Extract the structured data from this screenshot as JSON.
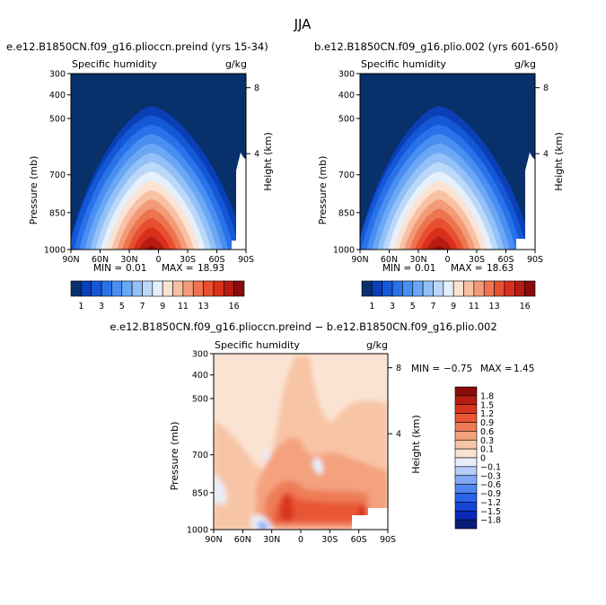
{
  "title": "JJA",
  "colors": {
    "blues9": [
      "#08306b",
      "#0a3fb8",
      "#1458d6",
      "#2a72ea",
      "#4a8ef2",
      "#6aa7f5",
      "#92c0f7",
      "#bcd8f9",
      "#e6f0fb"
    ],
    "reds8": [
      "#fbe3d3",
      "#f8c1a5",
      "#f39b78",
      "#ee7450",
      "#e84f2f",
      "#d9301c",
      "#b81b12",
      "#8a0c0a"
    ],
    "diff": [
      "#081d78",
      "#0a2ab8",
      "#1844d8",
      "#2a62ea",
      "#4f86f2",
      "#82a9f5",
      "#b4cdf9",
      "#e8eef9",
      "#fbe3d3",
      "#f8c4a6",
      "#f4a17e",
      "#ee7b57",
      "#e85634",
      "#d7351f",
      "#b41c13",
      "#8a0c0a"
    ]
  },
  "chart_data": [
    {
      "type": "heatmap",
      "title": "e.e12.B1850CN.f09_g16.plioccn.preind (yrs 15-34)",
      "subtitle": "Specific humidity",
      "units": "g/kg",
      "ylabel": "Pressure (mb)",
      "ylabel_right": "Height (km)",
      "x_ticks": [
        "90N",
        "60N",
        "30N",
        "0",
        "30S",
        "60S",
        "90S"
      ],
      "y_ticks": [
        "300",
        "400",
        "500",
        "700",
        "850",
        "1000"
      ],
      "y_right_ticks": [
        "8",
        "4"
      ],
      "stats": {
        "min_label": "MIN =",
        "min": "0.01",
        "max_label": "MAX =",
        "max": "18.93"
      },
      "colorbar_labels": [
        "1",
        "3",
        "5",
        "7",
        "9",
        "11",
        "13",
        "16"
      ],
      "peak_value": 18.93
    },
    {
      "type": "heatmap",
      "title": "b.e12.B1850CN.f09_g16.plio.002 (yrs 601-650)",
      "subtitle": "Specific humidity",
      "units": "g/kg",
      "ylabel": "Pressure (mb)",
      "ylabel_right": "Height (km)",
      "x_ticks": [
        "90N",
        "60N",
        "30N",
        "0",
        "30S",
        "60S",
        "90S"
      ],
      "y_ticks": [
        "300",
        "400",
        "500",
        "700",
        "850",
        "1000"
      ],
      "y_right_ticks": [
        "8",
        "4"
      ],
      "stats": {
        "min_label": "MIN =",
        "min": "0.01",
        "max_label": "MAX =",
        "max": "18.63"
      },
      "colorbar_labels": [
        "1",
        "3",
        "5",
        "7",
        "9",
        "11",
        "13",
        "16"
      ],
      "peak_value": 18.63
    },
    {
      "type": "heatmap",
      "title": "e.e12.B1850CN.f09_g16.plioccn.preind − b.e12.B1850CN.f09_g16.plio.002",
      "subtitle": "Specific humidity",
      "units": "g/kg",
      "ylabel": "Pressure (mb)",
      "ylabel_right": "Height (km)",
      "x_ticks": [
        "90N",
        "60N",
        "30N",
        "0",
        "30S",
        "60S",
        "90S"
      ],
      "y_ticks": [
        "300",
        "400",
        "500",
        "700",
        "850",
        "1000"
      ],
      "y_right_ticks": [
        "8",
        "4"
      ],
      "stats": {
        "min_label": "MIN =",
        "min": "−0.75",
        "max_label": "MAX =",
        "max": "1.45"
      },
      "colorbar_labels": [
        "1.8",
        "1.5",
        "1.2",
        "0.9",
        "0.6",
        "0.3",
        "0.1",
        "0",
        "−0.1",
        "−0.3",
        "−0.6",
        "−0.9",
        "−1.2",
        "−1.5",
        "−1.8"
      ]
    }
  ]
}
